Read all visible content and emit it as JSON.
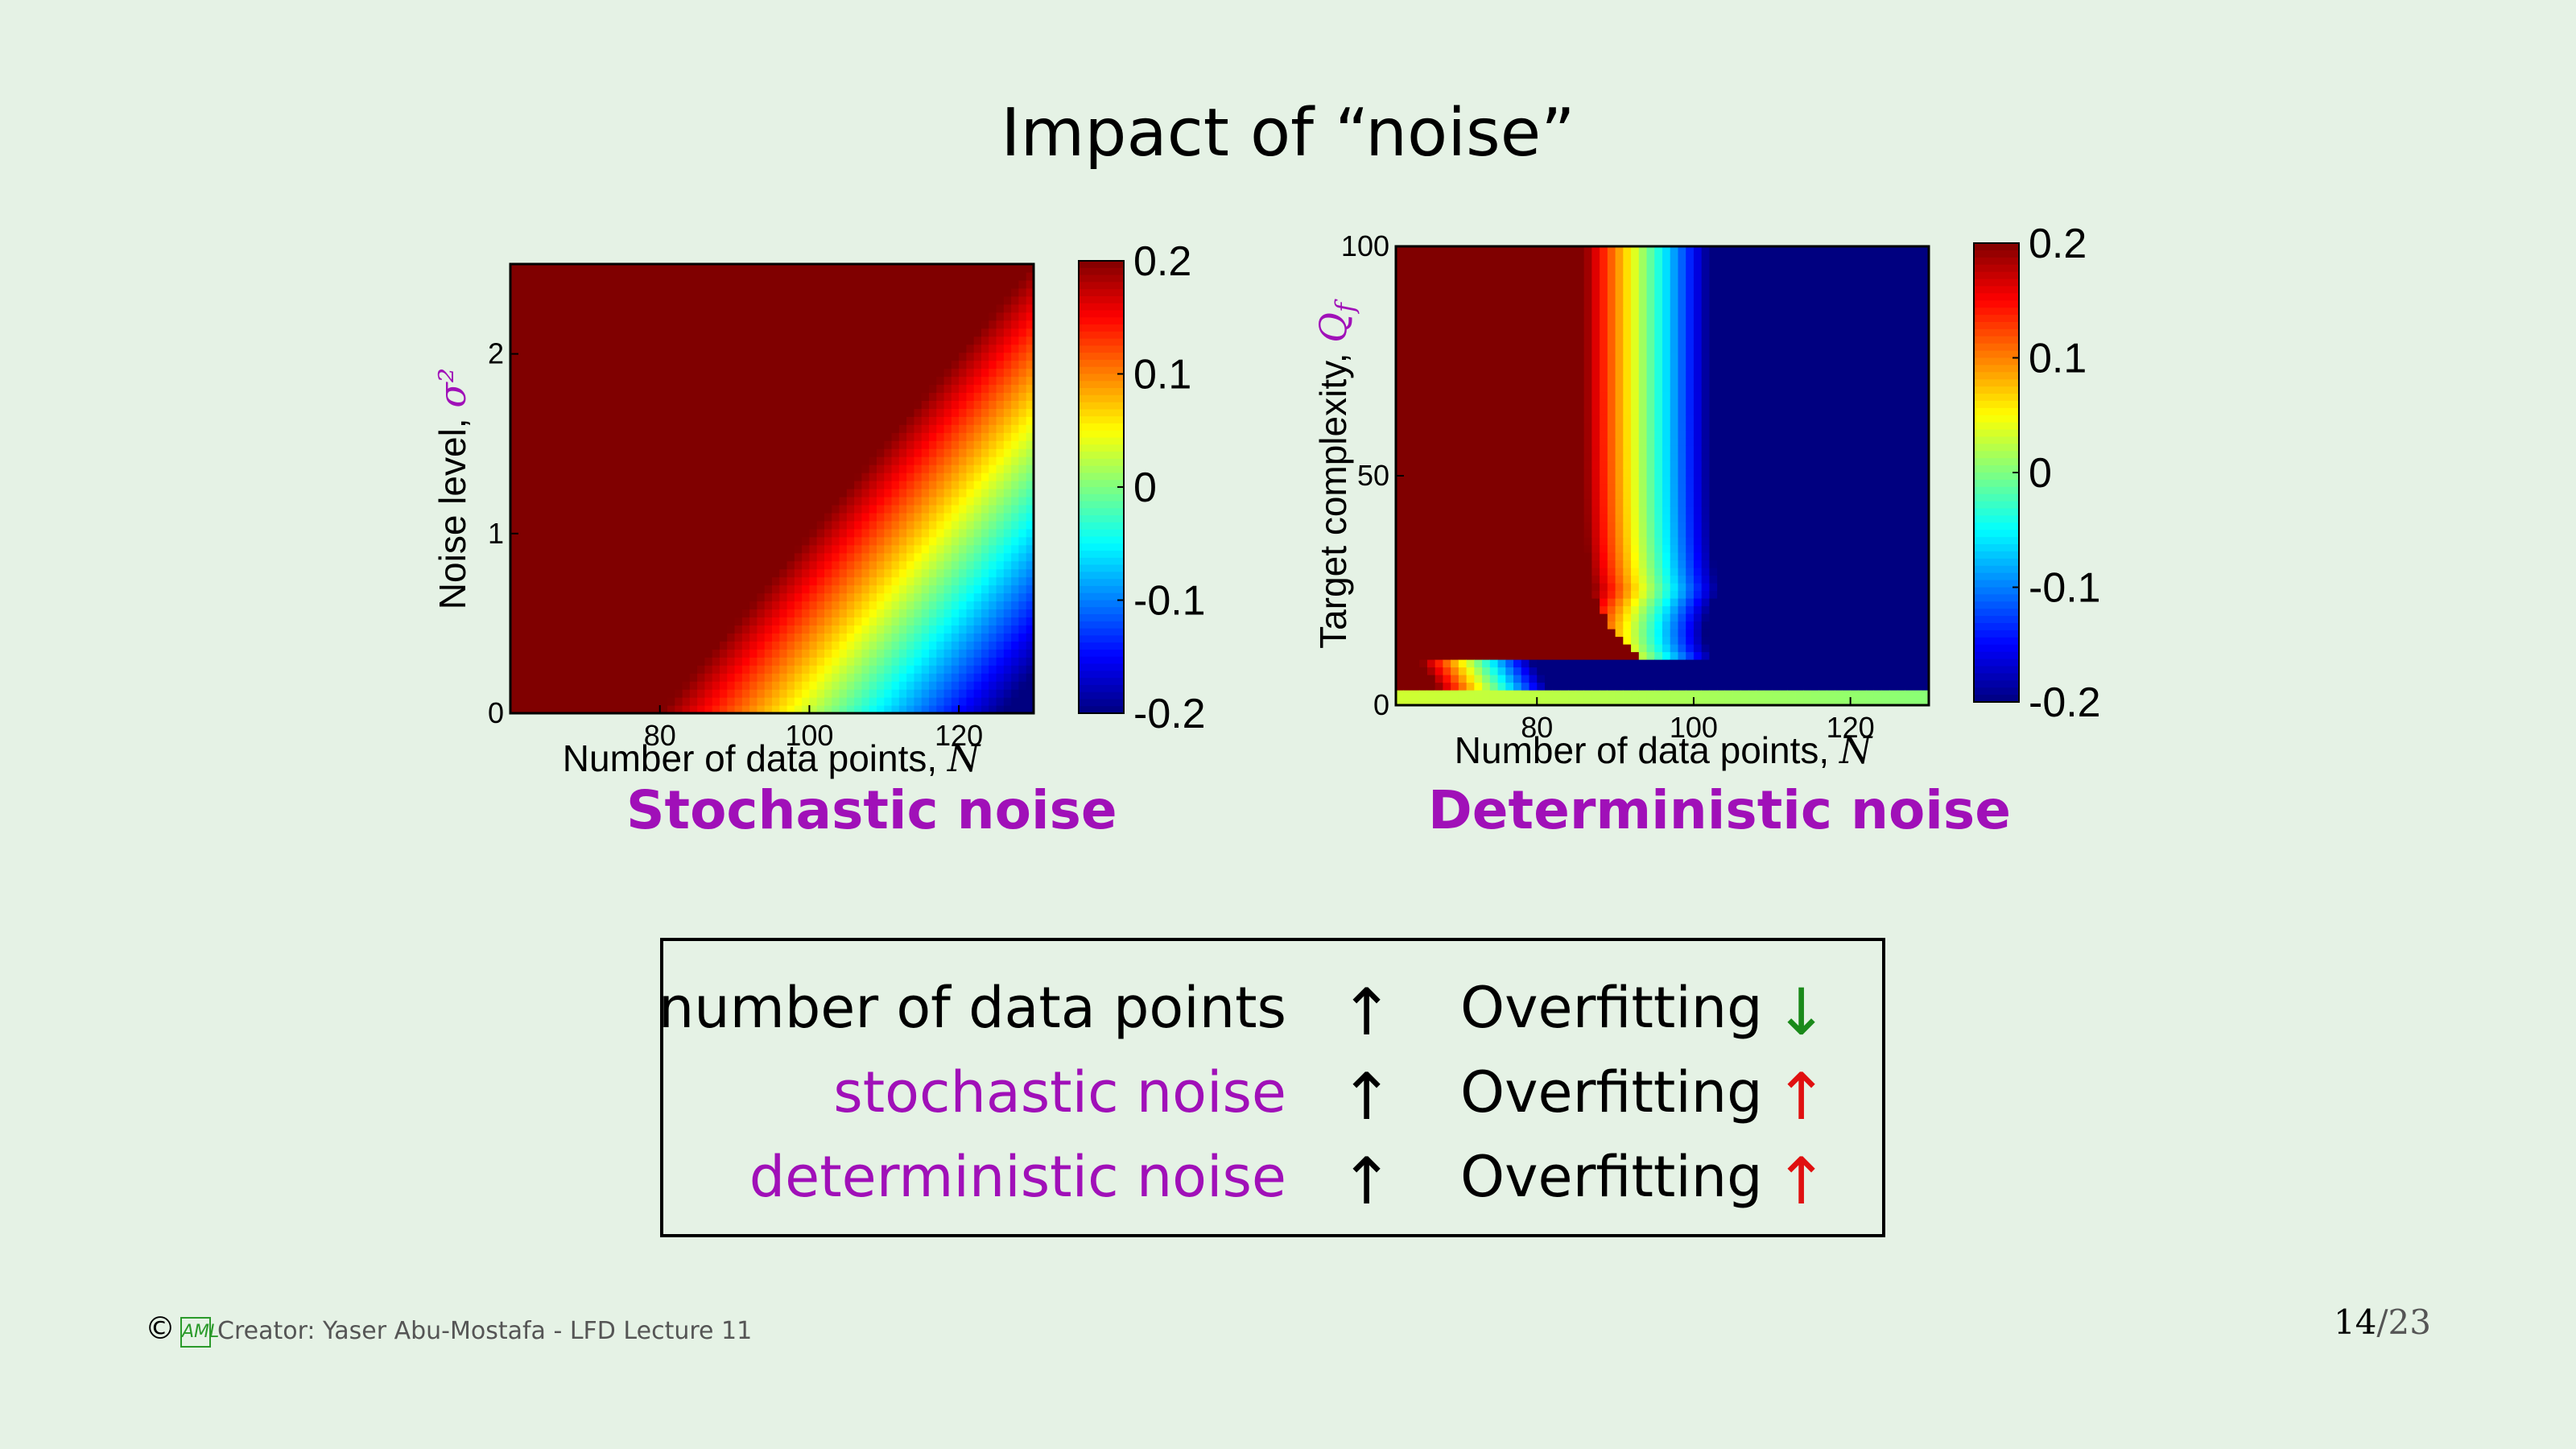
{
  "title": "Impact of “noise”",
  "colors": {
    "purple": "#a010b8",
    "green": "#1a8a1a",
    "red": "#e01010"
  },
  "chart_data": [
    {
      "type": "heatmap",
      "caption": "Stochastic noise",
      "xlabel": "Number of data points, ",
      "xlabel_symbol": "N",
      "ylabel": "Noise level, ",
      "ylabel_symbol": "σ²",
      "xlim": [
        60,
        130
      ],
      "ylim": [
        0,
        2.5
      ],
      "xticks": [
        80,
        100,
        120
      ],
      "yticks": [
        0,
        1,
        2
      ],
      "colorbar": {
        "range": [
          -0.2,
          0.2
        ],
        "ticks": [
          "0.2",
          "0.1",
          "0",
          "-0.1",
          "-0.2"
        ],
        "colormap": "jet"
      },
      "model": "value = clamp(0.2 - (N - (80 + 20*sigma2)) * 0.2/50), saturated red left of the diagonal"
    },
    {
      "type": "heatmap",
      "caption": "Deterministic noise",
      "xlabel": "Number of data points, ",
      "xlabel_symbol": "N",
      "ylabel": "Target complexity, ",
      "ylabel_symbol": "Q",
      "ylabel_sub": "f",
      "xlim": [
        62,
        130
      ],
      "ylim": [
        0,
        100
      ],
      "xticks": [
        80,
        100,
        120
      ],
      "yticks": [
        0,
        50,
        100
      ],
      "colorbar": {
        "range": [
          -0.2,
          0.2
        ],
        "ticks": [
          "0.2",
          "0.1",
          "0",
          "-0.1",
          "-0.2"
        ],
        "colormap": "jet"
      },
      "model": "saturated red for N < ~88 above Qf~10; falls to blue with increasing N; low Qf band dark blue"
    }
  ],
  "summary": {
    "rows": [
      {
        "left": "number of data points",
        "arrow1": "↑",
        "right": "Overfitting",
        "arrow2": "↓",
        "left_color": "black",
        "arrow2_color": "green"
      },
      {
        "left": "stochastic noise",
        "arrow1": "↑",
        "right": "Overfitting",
        "arrow2": "↑",
        "left_color": "purple",
        "arrow2_color": "red"
      },
      {
        "left": "deterministic noise",
        "arrow1": "↑",
        "right": "Overfitting",
        "arrow2": "↑",
        "left_color": "purple",
        "arrow2_color": "red"
      }
    ]
  },
  "footer": {
    "copyright": "©",
    "logo": "AML",
    "text": "Creator: Yaser Abu-Mostafa - LFD Lecture 11"
  },
  "page": {
    "current": "14",
    "sep": "/",
    "total": "23"
  }
}
